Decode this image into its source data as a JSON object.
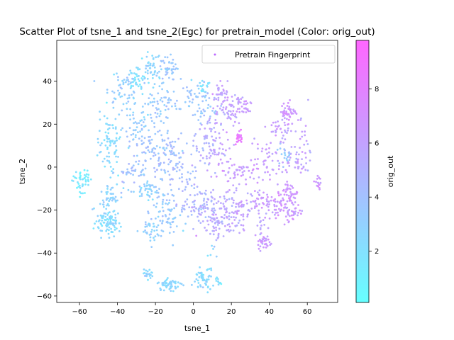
{
  "chart_data": {
    "type": "scatter",
    "title": "Scatter Plot of tsne_1 and tsne_2(Egc) for pretrain_model (Color: orig_out)",
    "xlabel": "tsne_1",
    "ylabel": "tsne_2",
    "xlim": [
      -72,
      76
    ],
    "ylim": [
      -63,
      59
    ],
    "xticks": [
      -60,
      -40,
      -20,
      0,
      20,
      40,
      60
    ],
    "yticks": [
      -60,
      -40,
      -20,
      0,
      20,
      40
    ],
    "grid": false,
    "legend": {
      "position": "top-right",
      "entries": [
        "Pretrain Fingerprint"
      ]
    },
    "colorbar": {
      "label": "orig_out",
      "colormap": "cool",
      "range": [
        0.1,
        9.8
      ],
      "ticks": [
        2,
        4,
        6,
        8
      ],
      "color_low": "#66ffff",
      "color_high": "#ff66ff"
    },
    "series": [
      {
        "name": "Pretrain Fingerprint",
        "color_by": "orig_out",
        "clusters": [
          {
            "x": -59,
            "y": -6,
            "sx": 2.5,
            "sy": 3,
            "n": 45,
            "v": 1.4
          },
          {
            "x": -45,
            "y": -26,
            "sx": 3.5,
            "sy": 3,
            "n": 90,
            "v": 2.3
          },
          {
            "x": -43,
            "y": -15,
            "sx": 3,
            "sy": 3,
            "n": 45,
            "v": 2.8
          },
          {
            "x": -44,
            "y": 12,
            "sx": 3,
            "sy": 8,
            "n": 80,
            "v": 2.3
          },
          {
            "x": -38,
            "y": 36,
            "sx": 5,
            "sy": 4,
            "n": 55,
            "v": 3.2
          },
          {
            "x": -30,
            "y": 42,
            "sx": 2.5,
            "sy": 2.5,
            "n": 35,
            "v": 2.0
          },
          {
            "x": -23,
            "y": 46,
            "sx": 3,
            "sy": 4,
            "n": 50,
            "v": 2.5
          },
          {
            "x": -12,
            "y": 46,
            "sx": 3,
            "sy": 3,
            "n": 40,
            "v": 3.6
          },
          {
            "x": -20,
            "y": 30,
            "sx": 6,
            "sy": 5,
            "n": 60,
            "v": 3.3
          },
          {
            "x": -30,
            "y": 20,
            "sx": 4,
            "sy": 4,
            "n": 35,
            "v": 2.9
          },
          {
            "x": -22,
            "y": 10,
            "sx": 6,
            "sy": 5,
            "n": 70,
            "v": 3.8
          },
          {
            "x": -14,
            "y": 5,
            "sx": 4,
            "sy": 5,
            "n": 50,
            "v": 4.0
          },
          {
            "x": -30,
            "y": -2,
            "sx": 6,
            "sy": 3,
            "n": 40,
            "v": 3.9
          },
          {
            "x": -23,
            "y": -11,
            "sx": 3,
            "sy": 2,
            "n": 45,
            "v": 3.0
          },
          {
            "x": -15,
            "y": -22,
            "sx": 4,
            "sy": 6,
            "n": 70,
            "v": 3.4
          },
          {
            "x": -22,
            "y": -30,
            "sx": 3,
            "sy": 3,
            "n": 30,
            "v": 2.9
          },
          {
            "x": -4,
            "y": -5,
            "sx": 6,
            "sy": 7,
            "n": 50,
            "v": 4.2
          },
          {
            "x": -2,
            "y": 32,
            "sx": 5,
            "sy": 4,
            "n": 40,
            "v": 3.7
          },
          {
            "x": 5,
            "y": 38,
            "sx": 2,
            "sy": 2,
            "n": 20,
            "v": 2.0
          },
          {
            "x": 7,
            "y": 27,
            "sx": 4,
            "sy": 4,
            "n": 30,
            "v": 3.6
          },
          {
            "x": 7,
            "y": 10,
            "sx": 3,
            "sy": 6,
            "n": 50,
            "v": 5.0
          },
          {
            "x": 14,
            "y": 36,
            "sx": 2,
            "sy": 2,
            "n": 25,
            "v": 5.8
          },
          {
            "x": 18,
            "y": 26,
            "sx": 4,
            "sy": 4,
            "n": 60,
            "v": 6.0
          },
          {
            "x": 26,
            "y": 29,
            "sx": 3,
            "sy": 3,
            "n": 30,
            "v": 6.3
          },
          {
            "x": 24,
            "y": 14,
            "sx": 1.5,
            "sy": 2,
            "n": 20,
            "v": 8.5
          },
          {
            "x": 15,
            "y": 5,
            "sx": 3,
            "sy": 6,
            "n": 40,
            "v": 6.2
          },
          {
            "x": 25,
            "y": -2,
            "sx": 4,
            "sy": 3,
            "n": 35,
            "v": 6.4
          },
          {
            "x": 3,
            "y": -18,
            "sx": 5,
            "sy": 4,
            "n": 70,
            "v": 4.8
          },
          {
            "x": 16,
            "y": -20,
            "sx": 5,
            "sy": 5,
            "n": 80,
            "v": 5.6
          },
          {
            "x": 12,
            "y": -28,
            "sx": 5,
            "sy": 2,
            "n": 40,
            "v": 5.4
          },
          {
            "x": 25,
            "y": -22,
            "sx": 3,
            "sy": 5,
            "n": 35,
            "v": 5.8
          },
          {
            "x": 37,
            "y": -35,
            "sx": 2,
            "sy": 2,
            "n": 35,
            "v": 6.4
          },
          {
            "x": 36,
            "y": -27,
            "sx": 1,
            "sy": 2,
            "n": 10,
            "v": 5.5
          },
          {
            "x": 32,
            "y": -15,
            "sx": 4,
            "sy": 4,
            "n": 40,
            "v": 6.1
          },
          {
            "x": 40,
            "y": 2,
            "sx": 4,
            "sy": 6,
            "n": 50,
            "v": 6.3
          },
          {
            "x": 47,
            "y": 18,
            "sx": 3,
            "sy": 3,
            "n": 35,
            "v": 6.2
          },
          {
            "x": 50,
            "y": 26,
            "sx": 2,
            "sy": 2,
            "n": 40,
            "v": 6.8
          },
          {
            "x": 53,
            "y": 2,
            "sx": 3,
            "sy": 3,
            "n": 30,
            "v": 6.0
          },
          {
            "x": 48,
            "y": 6,
            "sx": 2,
            "sy": 2,
            "n": 20,
            "v": 3.5
          },
          {
            "x": 50,
            "y": -13,
            "sx": 3,
            "sy": 3,
            "n": 55,
            "v": 6.6
          },
          {
            "x": 43,
            "y": -18,
            "sx": 3,
            "sy": 3,
            "n": 40,
            "v": 6.4
          },
          {
            "x": 52,
            "y": -22,
            "sx": 3,
            "sy": 2,
            "n": 30,
            "v": 6.4
          },
          {
            "x": 58,
            "y": 15,
            "sx": 3,
            "sy": 6,
            "n": 25,
            "v": 6.0
          },
          {
            "x": 66,
            "y": -8,
            "sx": 1.5,
            "sy": 1.5,
            "n": 15,
            "v": 6.5
          },
          {
            "x": -24,
            "y": -50,
            "sx": 1.5,
            "sy": 1.5,
            "n": 20,
            "v": 2.6
          },
          {
            "x": -13,
            "y": -55,
            "sx": 3,
            "sy": 1.5,
            "n": 55,
            "v": 2.5
          },
          {
            "x": 6,
            "y": -52,
            "sx": 2.5,
            "sy": 2.5,
            "n": 55,
            "v": 2.4
          },
          {
            "x": 13,
            "y": -54,
            "sx": 1,
            "sy": 1,
            "n": 10,
            "v": 2.0
          },
          {
            "x": 9,
            "y": -39,
            "sx": 1,
            "sy": 1.5,
            "n": 6,
            "v": 3.0
          }
        ]
      }
    ]
  }
}
